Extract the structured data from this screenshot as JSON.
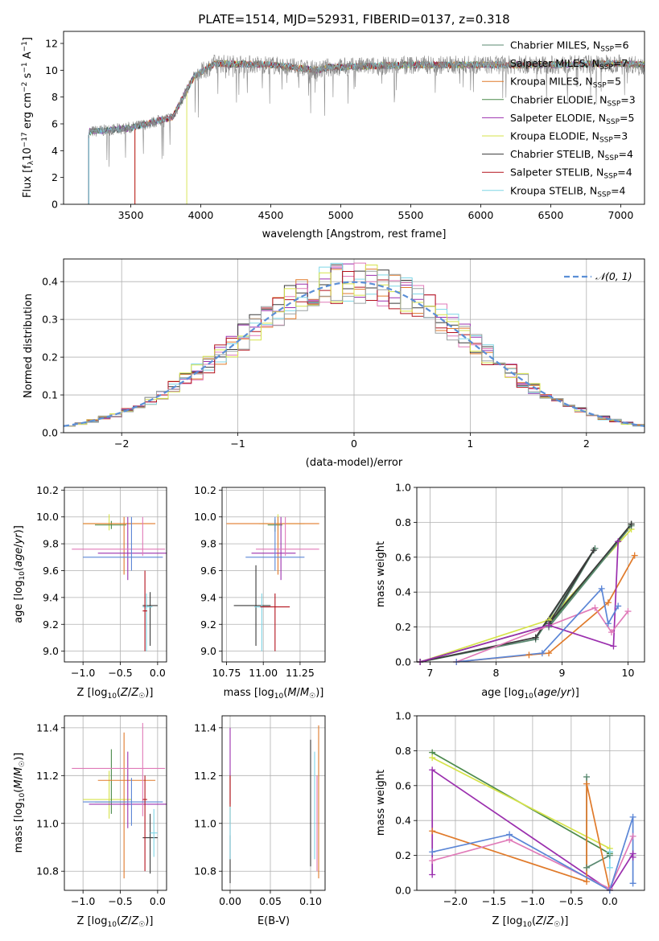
{
  "figure": {
    "title": "PLATE=1514, MJD=52931, FIBERID=0137, z=0.318"
  },
  "colors": {
    "chabrier_miles": "#5b8a72",
    "salpeter_miles": "#9aa0a0",
    "kroupa_miles": "#e07a2a",
    "chabrier_elodie": "#4c8a4c",
    "salpeter_elodie": "#9b2fae",
    "kroupa_elodie": "#d6e34a",
    "chabrier_stelib": "#3a3a3a",
    "salpeter_stelib": "#b3121c",
    "kroupa_stelib": "#7fd6e6",
    "blue": "#5b86d6",
    "pink": "#e07ab8",
    "gaussian": "#5b8fd6",
    "grid": "#b0b0b0"
  },
  "chart_data": [
    {
      "id": "spectrum",
      "type": "line",
      "title": "PLATE=1514, MJD=52931, FIBERID=0137, z=0.318",
      "xlabel": "wavelength [Angstrom, rest frame]",
      "ylabel": "Flux [f_λ 10^-17 erg cm^-2 s^-1 A^-1]",
      "xlim": [
        3020,
        7170
      ],
      "ylim": [
        0,
        12.9
      ],
      "xticks": [
        3500,
        4000,
        4500,
        5000,
        5500,
        6000,
        6500,
        7000
      ],
      "yticks": [
        0,
        2,
        4,
        6,
        8,
        10,
        12
      ],
      "grid": false,
      "legend_position": "right",
      "legend": [
        {
          "label": "Chabrier MILES, N",
          "sub": "SSP",
          "tail": "=6",
          "color": "#5b8a72"
        },
        {
          "label": "Salpeter MILES, N",
          "sub": "SSP",
          "tail": "=7",
          "color": "#9aa0a0"
        },
        {
          "label": "Kroupa MILES, N",
          "sub": "SSP",
          "tail": "=5",
          "color": "#e07a2a"
        },
        {
          "label": "Chabrier ELODIE, N",
          "sub": "SSP",
          "tail": "=3",
          "color": "#4c8a4c"
        },
        {
          "label": "Salpeter ELODIE, N",
          "sub": "SSP",
          "tail": "=5",
          "color": "#9b2fae"
        },
        {
          "label": "Kroupa ELODIE, N",
          "sub": "SSP",
          "tail": "=3",
          "color": "#d6e34a"
        },
        {
          "label": "Chabrier STELIB, N",
          "sub": "SSP",
          "tail": "=4",
          "color": "#3a3a3a"
        },
        {
          "label": "Salpeter STELIB, N",
          "sub": "SSP",
          "tail": "=4",
          "color": "#b3121c"
        },
        {
          "label": "Kroupa STELIB, N",
          "sub": "SSP",
          "tail": "=4",
          "color": "#7fd6e6"
        }
      ],
      "continuum": [
        [
          3200,
          5.4
        ],
        [
          3500,
          5.7
        ],
        [
          3800,
          6.5
        ],
        [
          3950,
          9.5
        ],
        [
          4100,
          10.5
        ],
        [
          4500,
          10.4
        ],
        [
          4850,
          10.0
        ],
        [
          4900,
          10.2
        ],
        [
          5500,
          10.4
        ],
        [
          6000,
          10.4
        ],
        [
          6500,
          10.4
        ],
        [
          7000,
          10.5
        ],
        [
          7170,
          10.4
        ]
      ],
      "model_starts": [
        3200,
        3200,
        3530,
        3200,
        3200,
        3900,
        3200,
        3530,
        3200
      ]
    },
    {
      "id": "residuals",
      "type": "line",
      "xlabel": "(data-model)/error",
      "ylabel": "Normed distribution",
      "xlim": [
        -2.5,
        2.5
      ],
      "ylim": [
        0,
        0.46
      ],
      "xticks": [
        -2,
        -1,
        0,
        1,
        2
      ],
      "yticks": [
        0.0,
        0.1,
        0.2,
        0.3,
        0.4
      ],
      "grid": true,
      "legend": [
        {
          "label": "𝒩(0, 1)",
          "color": "#5b8fd6"
        }
      ],
      "hist_colors": [
        "#e07a2a",
        "#9b2fae",
        "#e07ab8",
        "#3a3a3a",
        "#7fd6e6",
        "#b3121c",
        "#d6e34a",
        "#9aa0a0"
      ]
    },
    {
      "id": "z_age",
      "type": "scatter",
      "xlabel": "Z [log10(Z/Z☉)]",
      "ylabel": "age [log10(age/yr)]",
      "xlim": [
        -1.25,
        0.12
      ],
      "ylim": [
        8.92,
        10.22
      ],
      "xticks": [
        -1.0,
        -0.5,
        0.0
      ],
      "yticks": [
        9.0,
        9.2,
        9.4,
        9.6,
        9.8,
        10.0,
        10.2
      ],
      "grid": true,
      "points": [
        {
          "x": -0.65,
          "xerr": [
            0.35,
            0.3
          ],
          "y": 9.95,
          "yerr": [
            0.05,
            0.07
          ],
          "c": "#d6e34a"
        },
        {
          "x": -0.62,
          "xerr": [
            0.22,
            0.2
          ],
          "y": 9.94,
          "yerr": [
            0.03,
            0.03
          ],
          "c": "#4c8a4c"
        },
        {
          "x": -0.45,
          "xerr": [
            0.55,
            0.42
          ],
          "y": 9.95,
          "yerr": [
            0.38,
            0.05
          ],
          "c": "#e07a2a"
        },
        {
          "x": -0.4,
          "xerr": [
            0.4,
            0.6
          ],
          "y": 9.73,
          "yerr": [
            0.2,
            0.27
          ],
          "c": "#9b2fae"
        },
        {
          "x": -0.2,
          "xerr": [
            0.95,
            0.3
          ],
          "y": 9.76,
          "yerr": [
            0.05,
            0.24
          ],
          "c": "#e07ab8"
        },
        {
          "x": -0.35,
          "xerr": [
            0.65,
            0.42
          ],
          "y": 9.7,
          "yerr": [
            0.1,
            0.3
          ],
          "c": "#5b86d6"
        },
        {
          "x": -0.1,
          "xerr": [
            0.1,
            0.1
          ],
          "y": 9.34,
          "yerr": [
            0.3,
            0.1
          ],
          "c": "#3a3a3a"
        },
        {
          "x": -0.15,
          "xerr": [
            0.05,
            0.08
          ],
          "y": 9.33,
          "yerr": [
            0.33,
            0.1
          ],
          "c": "#7fd6e6"
        },
        {
          "x": -0.17,
          "xerr": [
            0.03,
            0.03
          ],
          "y": 9.3,
          "yerr": [
            0.3,
            0.3
          ],
          "c": "#b3121c"
        }
      ]
    },
    {
      "id": "mass_age",
      "type": "scatter",
      "xlabel": "mass [log10(M/M☉)]",
      "ylabel": "",
      "xlim": [
        10.72,
        11.42
      ],
      "ylim": [
        8.92,
        10.22
      ],
      "xticks": [
        10.75,
        11.0,
        11.25
      ],
      "yticks": [
        9.0,
        9.2,
        9.4,
        9.6,
        9.8,
        10.0,
        10.2
      ],
      "grid": true,
      "points": [
        {
          "x": 11.1,
          "xerr": [
            0.13,
            0.18
          ],
          "y": 9.95,
          "yerr": [
            0.05,
            0.07
          ],
          "c": "#d6e34a"
        },
        {
          "x": 11.08,
          "xerr": [
            0.05,
            0.05
          ],
          "y": 9.94,
          "yerr": [
            0.05,
            0.04
          ],
          "c": "#4c8a4c"
        },
        {
          "x": 11.1,
          "xerr": [
            0.35,
            0.28
          ],
          "y": 9.95,
          "yerr": [
            0.38,
            0.05
          ],
          "c": "#e07a2a"
        },
        {
          "x": 11.12,
          "xerr": [
            0.2,
            0.1
          ],
          "y": 9.73,
          "yerr": [
            0.2,
            0.27
          ],
          "c": "#9b2fae"
        },
        {
          "x": 11.15,
          "xerr": [
            0.2,
            0.23
          ],
          "y": 9.76,
          "yerr": [
            0.05,
            0.24
          ],
          "c": "#e07ab8"
        },
        {
          "x": 11.08,
          "xerr": [
            0.2,
            0.2
          ],
          "y": 9.7,
          "yerr": [
            0.1,
            0.3
          ],
          "c": "#5b86d6"
        },
        {
          "x": 10.95,
          "xerr": [
            0.15,
            0.1
          ],
          "y": 9.34,
          "yerr": [
            0.3,
            0.3
          ],
          "c": "#3a3a3a"
        },
        {
          "x": 10.99,
          "xerr": [
            0.05,
            0.05
          ],
          "y": 9.33,
          "yerr": [
            0.33,
            0.1
          ],
          "c": "#7fd6e6"
        },
        {
          "x": 11.08,
          "xerr": [
            0.1,
            0.1
          ],
          "y": 9.33,
          "yerr": [
            0.33,
            0.1
          ],
          "c": "#b3121c"
        }
      ]
    },
    {
      "id": "age_weight",
      "type": "line",
      "xlabel": "age [log10(age/yr)]",
      "ylabel": "mass weight",
      "xlim": [
        6.8,
        10.25
      ],
      "ylim": [
        0,
        1.0
      ],
      "xticks": [
        7,
        8,
        9,
        10
      ],
      "yticks": [
        0.0,
        0.2,
        0.4,
        0.6,
        0.8,
        1.0
      ],
      "grid": true,
      "series": [
        {
          "c": "#d6e34a",
          "x": [
            6.85,
            8.8,
            10.05
          ],
          "y": [
            0.0,
            0.24,
            0.76
          ]
        },
        {
          "c": "#4c8a4c",
          "x": [
            6.85,
            8.8,
            10.05
          ],
          "y": [
            0.0,
            0.21,
            0.79
          ]
        },
        {
          "c": "#5b8a72",
          "x": [
            6.85,
            8.6,
            9.5,
            8.8,
            10.05
          ],
          "y": [
            0.0,
            0.13,
            0.65,
            0.2,
            0.78
          ]
        },
        {
          "c": "#3a3a3a",
          "x": [
            6.85,
            8.6,
            9.48,
            8.8,
            10.05
          ],
          "y": [
            0.0,
            0.14,
            0.64,
            0.22,
            0.79
          ]
        },
        {
          "c": "#e07a2a",
          "x": [
            7.4,
            8.5,
            8.8,
            9.7,
            10.1
          ],
          "y": [
            0.0,
            0.04,
            0.05,
            0.34,
            0.61
          ]
        },
        {
          "c": "#9b2fae",
          "x": [
            6.85,
            8.8,
            9.78,
            9.85
          ],
          "y": [
            0.0,
            0.21,
            0.09,
            0.69
          ]
        },
        {
          "c": "#e07ab8",
          "x": [
            7.4,
            9.5,
            9.75,
            10.0
          ],
          "y": [
            0.0,
            0.31,
            0.17,
            0.29
          ]
        },
        {
          "c": "#5b86d6",
          "x": [
            7.4,
            8.7,
            9.6,
            9.7,
            9.85
          ],
          "y": [
            0.0,
            0.05,
            0.42,
            0.22,
            0.32
          ]
        }
      ]
    },
    {
      "id": "z_mass",
      "type": "scatter",
      "xlabel": "Z [log10(Z/Z☉)]",
      "ylabel": "mass [log10(M/M☉)]",
      "xlim": [
        -1.25,
        0.12
      ],
      "ylim": [
        10.72,
        11.45
      ],
      "xticks": [
        -1.0,
        -0.5,
        0.0
      ],
      "yticks": [
        10.8,
        11.0,
        11.2,
        11.4
      ],
      "grid": true,
      "points": [
        {
          "x": -0.65,
          "xerr": [
            0.35,
            0.3
          ],
          "y": 11.1,
          "yerr": [
            0.08,
            0.12
          ],
          "c": "#d6e34a"
        },
        {
          "x": -0.62,
          "xerr": [
            0.22,
            0.2
          ],
          "y": 11.09,
          "yerr": [
            0.05,
            0.22
          ],
          "c": "#4c8a4c"
        },
        {
          "x": -0.45,
          "xerr": [
            0.35,
            0.42
          ],
          "y": 11.18,
          "yerr": [
            0.41,
            0.2
          ],
          "c": "#e07a2a"
        },
        {
          "x": -0.4,
          "xerr": [
            0.52,
            0.6
          ],
          "y": 11.08,
          "yerr": [
            0.1,
            0.22
          ],
          "c": "#9b2fae"
        },
        {
          "x": -0.2,
          "xerr": [
            0.95,
            0.3
          ],
          "y": 11.23,
          "yerr": [
            0.2,
            0.19
          ],
          "c": "#e07ab8"
        },
        {
          "x": -0.35,
          "xerr": [
            0.65,
            0.42
          ],
          "y": 11.09,
          "yerr": [
            0.1,
            0.1
          ],
          "c": "#5b86d6"
        },
        {
          "x": -0.1,
          "xerr": [
            0.1,
            0.1
          ],
          "y": 10.94,
          "yerr": [
            0.15,
            0.1
          ],
          "c": "#3a3a3a"
        },
        {
          "x": -0.05,
          "xerr": [
            0.05,
            0.05
          ],
          "y": 10.96,
          "yerr": [
            0.1,
            0.1
          ],
          "c": "#7fd6e6"
        },
        {
          "x": -0.17,
          "xerr": [
            0.03,
            0.03
          ],
          "y": 11.1,
          "yerr": [
            0.3,
            0.1
          ],
          "c": "#b3121c"
        }
      ]
    },
    {
      "id": "ebv_mass",
      "type": "scatter",
      "xlabel": "E(B-V)",
      "ylabel": "",
      "xlim": [
        -0.01,
        0.118
      ],
      "ylim": [
        10.72,
        11.45
      ],
      "xticks": [
        0.0,
        0.05,
        0.1
      ],
      "yticks": [
        10.8,
        11.0,
        11.2,
        11.4
      ],
      "grid": true,
      "points": [
        {
          "x": 0.0,
          "xerr": [
            0,
            0
          ],
          "y": 11.1,
          "yerr": [
            0.1,
            0.12
          ],
          "c": "#d6e34a"
        },
        {
          "x": 0.0,
          "xerr": [
            0,
            0
          ],
          "y": 11.2,
          "yerr": [
            0.12,
            0.2
          ],
          "c": "#9b2fae"
        },
        {
          "x": 0.0,
          "xerr": [
            0,
            0
          ],
          "y": 11.0,
          "yerr": [
            0.15,
            0.2
          ],
          "c": "#b3121c"
        },
        {
          "x": 0.0,
          "xerr": [
            0,
            0
          ],
          "y": 10.85,
          "yerr": [
            0.1,
            0.1
          ],
          "c": "#3a3a3a"
        },
        {
          "x": 0.0,
          "xerr": [
            0,
            0
          ],
          "y": 10.95,
          "yerr": [
            0.1,
            0.12
          ],
          "c": "#7fd6e6"
        },
        {
          "x": 0.1,
          "xerr": [
            0,
            0
          ],
          "y": 11.07,
          "yerr": [
            0.25,
            0.28
          ],
          "c": "#3a3a3a"
        },
        {
          "x": 0.105,
          "xerr": [
            0,
            0
          ],
          "y": 11.05,
          "yerr": [
            0.2,
            0.25
          ],
          "c": "#7fd6e6"
        },
        {
          "x": 0.108,
          "xerr": [
            0,
            0
          ],
          "y": 11.0,
          "yerr": [
            0.2,
            0.2
          ],
          "c": "#e07ab8"
        },
        {
          "x": 0.11,
          "xerr": [
            0,
            0
          ],
          "y": 11.05,
          "yerr": [
            0.28,
            0.36
          ],
          "c": "#e07a2a"
        }
      ]
    },
    {
      "id": "z_weight",
      "type": "line",
      "xlabel": "Z [log10(Z/Z☉)]",
      "ylabel": "mass weight",
      "xlim": [
        -2.5,
        0.45
      ],
      "ylim": [
        0,
        1.0
      ],
      "xticks": [
        -2.0,
        -1.5,
        -1.0,
        -0.5,
        0.0
      ],
      "yticks": [
        0.0,
        0.2,
        0.4,
        0.6,
        0.8,
        1.0
      ],
      "grid": true,
      "series": [
        {
          "c": "#4c8a4c",
          "x": [
            -2.3,
            0.0
          ],
          "y": [
            0.79,
            0.21
          ]
        },
        {
          "c": "#d6e34a",
          "x": [
            -2.3,
            0.0
          ],
          "y": [
            0.76,
            0.24
          ]
        },
        {
          "c": "#5b8a72",
          "x": [
            -0.3,
            -0.3,
            0.0,
            0.0
          ],
          "y": [
            0.65,
            0.13,
            0.2,
            0.22
          ]
        },
        {
          "c": "#7fd6e6",
          "x": [
            0.0,
            0.0
          ],
          "y": [
            0.13,
            0.22
          ]
        },
        {
          "c": "#9b2fae",
          "x": [
            -2.3,
            -2.3,
            0.0,
            0.3,
            0.3
          ],
          "y": [
            0.09,
            0.69,
            0.0,
            0.21,
            0.19
          ]
        },
        {
          "c": "#e07a2a",
          "x": [
            -2.3,
            -0.3,
            -0.3,
            0.0
          ],
          "y": [
            0.34,
            0.05,
            0.61,
            0.0
          ]
        },
        {
          "c": "#e07ab8",
          "x": [
            -2.3,
            -1.3,
            0.0,
            0.3
          ],
          "y": [
            0.17,
            0.29,
            0.01,
            0.31
          ]
        },
        {
          "c": "#5b86d6",
          "x": [
            -2.3,
            -1.3,
            0.0,
            0.3,
            0.3
          ],
          "y": [
            0.22,
            0.32,
            0.0,
            0.42,
            0.04
          ]
        }
      ]
    }
  ],
  "labels": {
    "spectrum_ylabel": "Flux [f",
    "z_label": "Z [log",
    "mass_label": "mass [log",
    "age_label": "age  [log"
  }
}
